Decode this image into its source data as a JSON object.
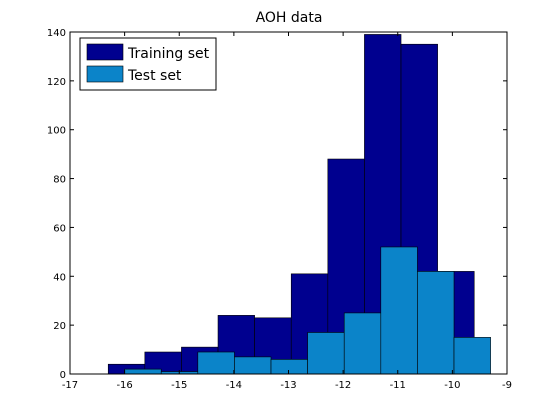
{
  "chart_data": {
    "type": "bar",
    "title": "AOH data",
    "xlabel": "",
    "ylabel": "",
    "xlim": [
      -17,
      -9
    ],
    "ylim": [
      0,
      140
    ],
    "xticks": [
      -17,
      -16,
      -15,
      -14,
      -13,
      -12,
      -11,
      -10,
      -9
    ],
    "yticks": [
      0,
      20,
      40,
      60,
      80,
      100,
      120,
      140
    ],
    "grid": false,
    "legend_position": "top-left",
    "series": [
      {
        "name": "Training set",
        "color": "#00008f",
        "edges": [
          -16.3,
          -15.63,
          -14.96,
          -14.29,
          -13.62,
          -12.95,
          -12.28,
          -11.61,
          -10.94,
          -10.27,
          -9.6
        ],
        "values": [
          4,
          9,
          11,
          24,
          23,
          41,
          88,
          139,
          135,
          42
        ]
      },
      {
        "name": "Test set",
        "color": "#0b84c9",
        "edges": [
          -16.0,
          -15.33,
          -14.66,
          -13.99,
          -13.32,
          -12.65,
          -11.98,
          -11.31,
          -10.64,
          -9.97,
          -9.3
        ],
        "values": [
          2,
          1,
          9,
          7,
          6,
          17,
          25,
          52,
          42,
          15
        ]
      }
    ]
  }
}
